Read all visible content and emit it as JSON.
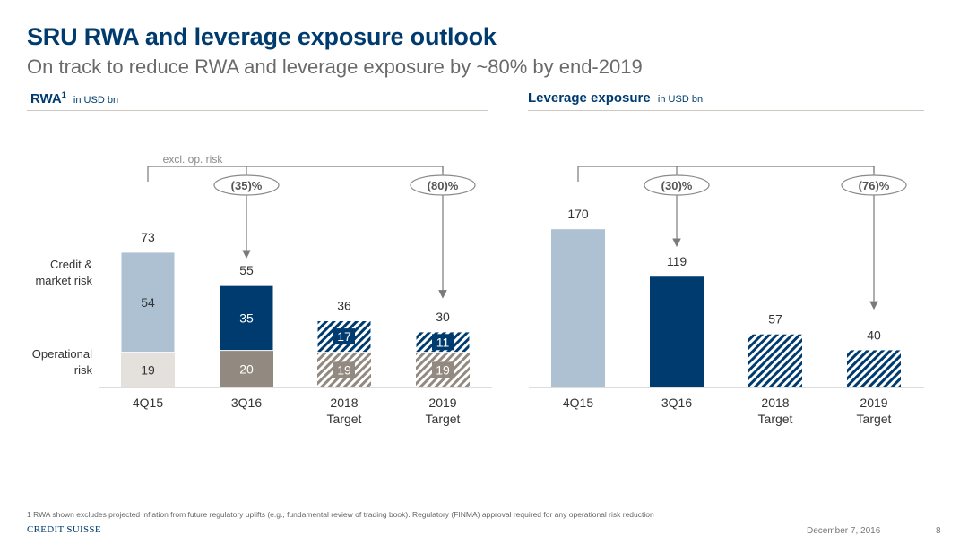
{
  "header": {
    "title": "SRU RWA and leverage exposure outlook",
    "subtitle": "On track to reduce RWA and leverage exposure by ~80% by end-2019"
  },
  "left_panel": {
    "title": "RWA",
    "title_sup": "1",
    "unit": "in USD bn"
  },
  "right_panel": {
    "title": "Leverage exposure",
    "unit": "in USD bn"
  },
  "colors": {
    "light_blue": "#adc1d3",
    "navy": "#003b6f",
    "light_grey": "#e4e1dc",
    "taupe": "#928a80",
    "arrow": "#7a7a7a"
  },
  "chart_data": [
    {
      "type": "bar",
      "stacked": true,
      "title": "RWA",
      "unit": "in USD bn",
      "categories": [
        "4Q15",
        "3Q16",
        "2018 Target",
        "2019 Target"
      ],
      "category_lines": [
        [
          "4Q15"
        ],
        [
          "3Q16"
        ],
        [
          "2018",
          "Target"
        ],
        [
          "2019",
          "Target"
        ]
      ],
      "series": [
        {
          "name": "Operational risk",
          "name_lines": [
            "Operational",
            "risk"
          ],
          "values": [
            19,
            20,
            19,
            19
          ]
        },
        {
          "name": "Credit & market risk",
          "name_lines": [
            "Credit &",
            "market risk"
          ],
          "values": [
            54,
            35,
            17,
            11
          ]
        }
      ],
      "totals": [
        73,
        55,
        36,
        30
      ],
      "hatched": [
        false,
        false,
        true,
        true
      ],
      "annotations": [
        {
          "text": "excl. op. risk"
        },
        {
          "text": "(35)%",
          "from": "4Q15",
          "to": "3Q16"
        },
        {
          "text": "(80)%",
          "from": "4Q15",
          "to": "2019 Target"
        }
      ],
      "ylim": [
        0,
        80
      ]
    },
    {
      "type": "bar",
      "title": "Leverage exposure",
      "unit": "in USD bn",
      "categories": [
        "4Q15",
        "3Q16",
        "2018 Target",
        "2019 Target"
      ],
      "category_lines": [
        [
          "4Q15"
        ],
        [
          "3Q16"
        ],
        [
          "2018",
          "Target"
        ],
        [
          "2019",
          "Target"
        ]
      ],
      "values": [
        170,
        119,
        57,
        40
      ],
      "hatched": [
        false,
        false,
        true,
        true
      ],
      "annotations": [
        {
          "text": "(30)%",
          "from": "4Q15",
          "to": "3Q16"
        },
        {
          "text": "(76)%",
          "from": "4Q15",
          "to": "2019 Target"
        }
      ],
      "ylim": [
        0,
        200
      ]
    }
  ],
  "footer": {
    "footnote": "1 RWA shown excludes projected inflation from future regulatory uplifts (e.g., fundamental review of trading book). Regulatory (FINMA) approval required for any operational risk reduction",
    "logo": "CREDIT SUISSE",
    "date": "December 7, 2016",
    "page": "8"
  }
}
